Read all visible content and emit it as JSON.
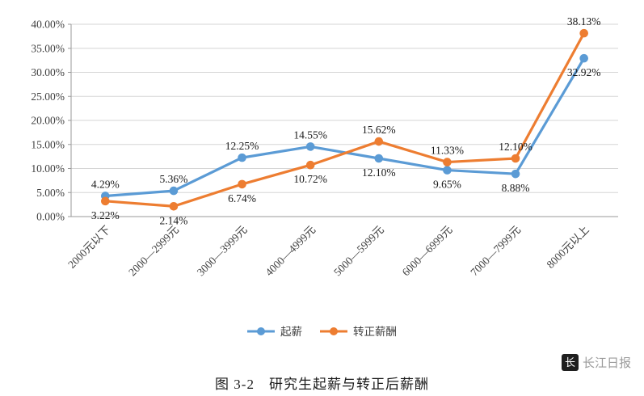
{
  "chart_data": {
    "type": "line",
    "categories": [
      "2000元以下",
      "2000—2999元",
      "3000—3999元",
      "4000—4999元",
      "5000—5999元",
      "6000—6999元",
      "7000—7999元",
      "8000元以上"
    ],
    "series": [
      {
        "name": "起薪",
        "color": "#5B9BD5",
        "values": [
          4.29,
          5.36,
          12.25,
          14.55,
          12.1,
          9.65,
          8.88,
          32.92
        ]
      },
      {
        "name": "转正薪酬",
        "color": "#ED7D31",
        "values": [
          3.22,
          2.14,
          6.74,
          10.72,
          15.62,
          11.33,
          12.1,
          38.13
        ]
      }
    ],
    "ylim": [
      0,
      40
    ],
    "ytick_step": 5,
    "ytick_labels": [
      "0.00%",
      "5.00%",
      "10.00%",
      "15.00%",
      "20.00%",
      "25.00%",
      "30.00%",
      "35.00%",
      "40.00%"
    ],
    "grid": true,
    "data_labels": true,
    "legend_position": "bottom",
    "colors": {
      "gridline": "#d6d6d6",
      "axis": "#9a9a9a",
      "tick_text": "#404040",
      "label_text": "#1a1a1a"
    }
  },
  "caption": "图 3-2　研究生起薪与转正后薪酬",
  "watermark": {
    "logo_text": "长",
    "name": "长江日报"
  }
}
